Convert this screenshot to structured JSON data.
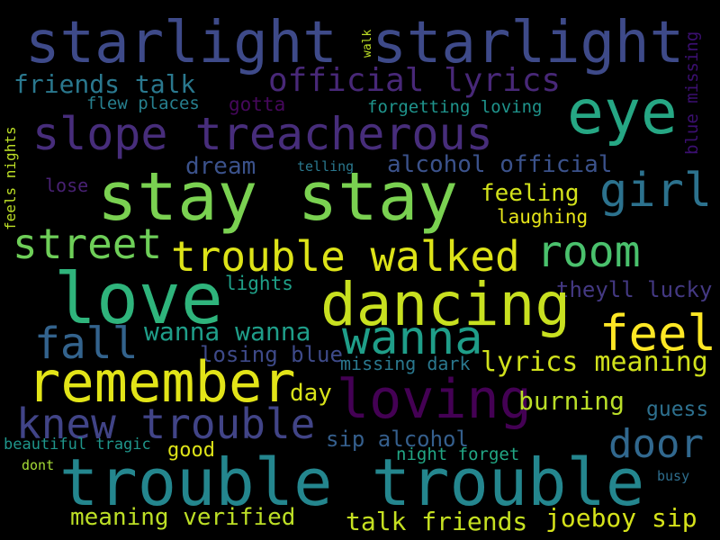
{
  "words": [
    {
      "text": "starlight starlight",
      "color": "#3e4a89"
    },
    {
      "text": "walk",
      "color": "#bddf26"
    },
    {
      "text": "blue missing",
      "color": "#3b0f70"
    },
    {
      "text": "official lyrics",
      "color": "#482878"
    },
    {
      "text": "friends talk",
      "color": "#2a788e"
    },
    {
      "text": "eye",
      "color": "#26a784"
    },
    {
      "text": "flew places",
      "color": "#277f8e"
    },
    {
      "text": "gotta",
      "color": "#46085c"
    },
    {
      "text": "forgetting loving",
      "color": "#1f948c"
    },
    {
      "text": "slope treacherous",
      "color": "#472d7b"
    },
    {
      "text": "feels nights",
      "color": "#bddf26"
    },
    {
      "text": "dream",
      "color": "#3b528b"
    },
    {
      "text": "telling",
      "color": "#2a788e"
    },
    {
      "text": "alcohol official",
      "color": "#3b528b"
    },
    {
      "text": "stay stay",
      "color": "#7ad151"
    },
    {
      "text": "girl",
      "color": "#2c728e"
    },
    {
      "text": "lose",
      "color": "#482173"
    },
    {
      "text": "feeling",
      "color": "#d2e21b"
    },
    {
      "text": "laughing",
      "color": "#e5e419"
    },
    {
      "text": "street",
      "color": "#6ece58"
    },
    {
      "text": "trouble walked",
      "color": "#dde318"
    },
    {
      "text": "room",
      "color": "#4ac16d"
    },
    {
      "text": "love",
      "color": "#2fb47c"
    },
    {
      "text": "lights",
      "color": "#1fa088"
    },
    {
      "text": "theyll lucky",
      "color": "#443983"
    },
    {
      "text": "dancing",
      "color": "#c8e020"
    },
    {
      "text": "fall",
      "color": "#33638d"
    },
    {
      "text": "wanna wanna",
      "color": "#1f9e89"
    },
    {
      "text": "wanna",
      "color": "#1f9e89"
    },
    {
      "text": "feel",
      "color": "#fde725"
    },
    {
      "text": "losing blue",
      "color": "#3e4a89"
    },
    {
      "text": "missing dark",
      "color": "#2a788e"
    },
    {
      "text": "remember",
      "color": "#e2e418"
    },
    {
      "text": "lyrics meaning",
      "color": "#d0e11c"
    },
    {
      "text": "loving",
      "color": "#440154"
    },
    {
      "text": "day",
      "color": "#d8e219"
    },
    {
      "text": "burning",
      "color": "#bade28"
    },
    {
      "text": "knew trouble",
      "color": "#414487"
    },
    {
      "text": "guess",
      "color": "#2d708e"
    },
    {
      "text": "door",
      "color": "#31688e"
    },
    {
      "text": "sip alcohol",
      "color": "#355f8d"
    },
    {
      "text": "beautiful tragic",
      "color": "#1f968b"
    },
    {
      "text": "good",
      "color": "#dde318"
    },
    {
      "text": "night forget",
      "color": "#22a785"
    },
    {
      "text": "dont",
      "color": "#a5db36"
    },
    {
      "text": "trouble trouble",
      "color": "#24868e"
    },
    {
      "text": "busy",
      "color": "#2e6e8e"
    },
    {
      "text": "meaning verified",
      "color": "#bddf26"
    },
    {
      "text": "talk friends",
      "color": "#c5e021"
    },
    {
      "text": "joeboy sip",
      "color": "#d5e21a"
    }
  ]
}
